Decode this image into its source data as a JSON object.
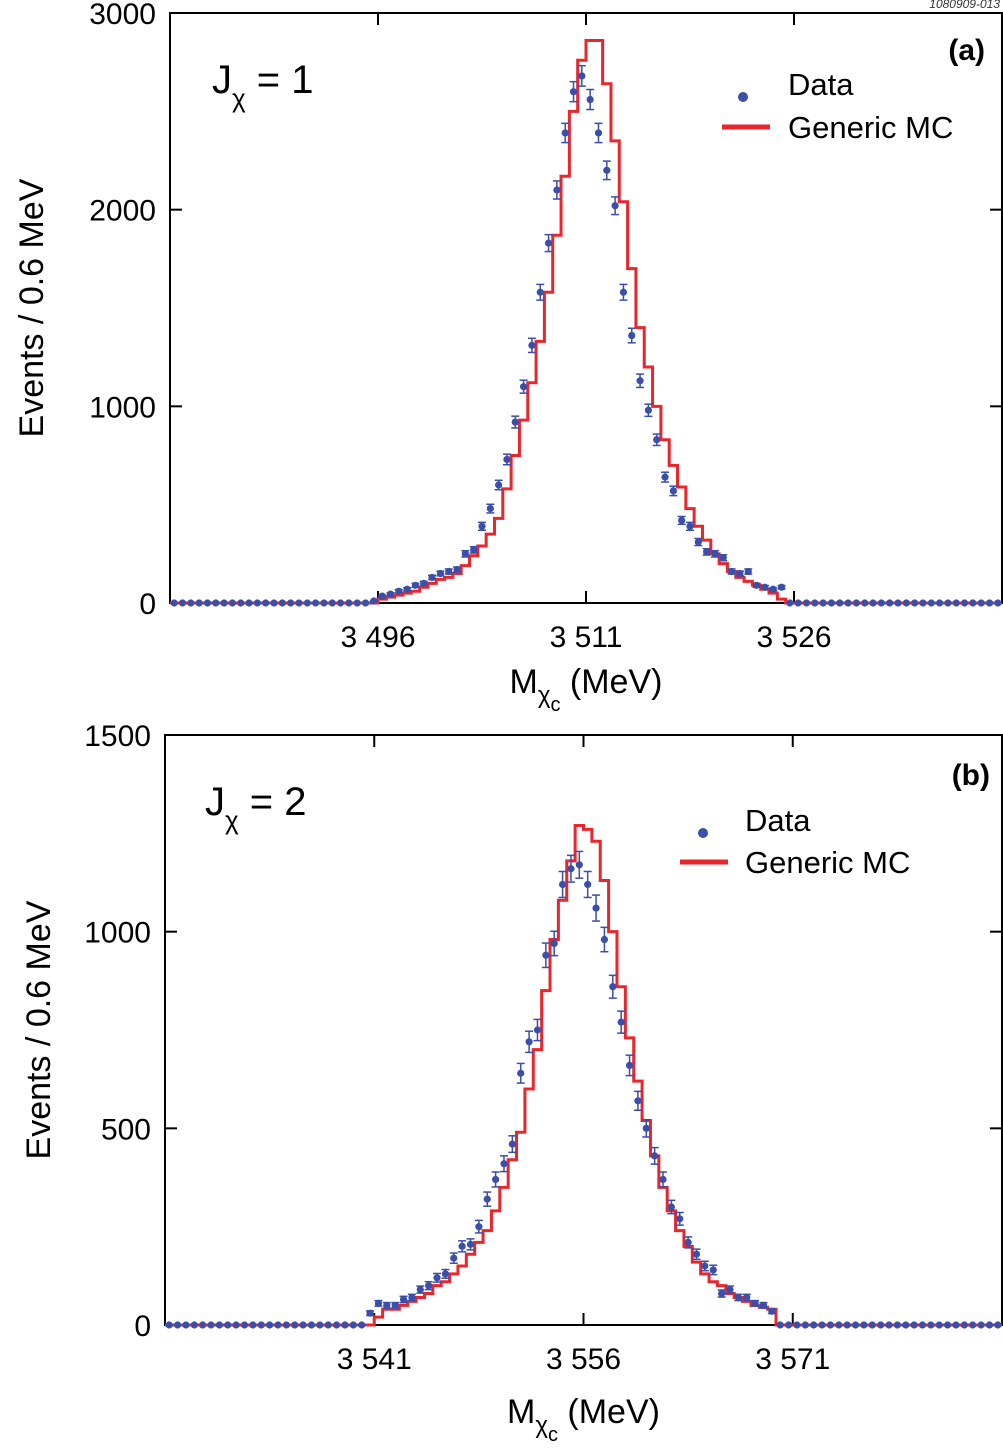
{
  "corner_label": "1080909-013",
  "legend_marker_color": "#3a4faa",
  "legend_line_color": "#e8262b",
  "chart_data": [
    {
      "type": "line",
      "panel_tag": "(a)",
      "annotation": {
        "main": "J",
        "sub": "χ",
        "rest": " = 1"
      },
      "ylabel": "Events / 0.6 MeV",
      "xlabel": {
        "main": "M",
        "sub": "χ",
        "subsub": "c",
        "rest": " (MeV)"
      },
      "xticks": [
        {
          "value": 3496,
          "label": "3 496"
        },
        {
          "value": 3511,
          "label": "3 511"
        },
        {
          "value": 3526,
          "label": "3 526"
        }
      ],
      "yticks": [
        {
          "value": 0,
          "label": "0"
        },
        {
          "value": 1000,
          "label": "1000"
        },
        {
          "value": 2000,
          "label": "2000"
        },
        {
          "value": 3000,
          "label": "3000"
        }
      ],
      "xlim": [
        3481,
        3541
      ],
      "ylim": [
        0,
        3000
      ],
      "legend": [
        {
          "name": "Data",
          "kind": "marker"
        },
        {
          "name": "Generic MC",
          "kind": "line"
        }
      ],
      "series": [
        {
          "name": "Data",
          "kind": "points_errorbars",
          "x": [
            3481.3,
            3481.9,
            3482.5,
            3483.1,
            3483.7,
            3484.3,
            3484.9,
            3485.5,
            3486.1,
            3486.7,
            3487.3,
            3487.9,
            3488.5,
            3489.1,
            3489.7,
            3490.3,
            3490.9,
            3491.5,
            3492.1,
            3492.7,
            3493.3,
            3493.9,
            3494.5,
            3495.1,
            3495.7,
            3496.3,
            3496.9,
            3497.5,
            3498.1,
            3498.7,
            3499.3,
            3499.9,
            3500.5,
            3501.1,
            3501.7,
            3502.3,
            3502.9,
            3503.5,
            3504.1,
            3504.7,
            3505.3,
            3505.9,
            3506.5,
            3507.1,
            3507.7,
            3508.3,
            3508.9,
            3509.5,
            3510.1,
            3510.7,
            3511.3,
            3511.9,
            3512.5,
            3513.1,
            3513.7,
            3514.3,
            3514.9,
            3515.5,
            3516.1,
            3516.7,
            3517.3,
            3517.9,
            3518.5,
            3519.1,
            3519.7,
            3520.3,
            3520.9,
            3521.5,
            3522.1,
            3522.7,
            3523.3,
            3523.9,
            3524.5,
            3525.1,
            3525.7,
            3526.3,
            3526.9,
            3527.5,
            3528.1,
            3528.7,
            3529.3,
            3529.9,
            3530.5,
            3531.1,
            3531.7,
            3532.3,
            3532.9,
            3533.5,
            3534.1,
            3534.7,
            3535.3,
            3535.9,
            3536.5,
            3537.1,
            3537.7,
            3538.3,
            3538.9,
            3539.5,
            3540.1,
            3540.7
          ],
          "y": [
            0,
            0,
            0,
            0,
            0,
            0,
            0,
            0,
            0,
            0,
            0,
            0,
            0,
            0,
            0,
            0,
            0,
            0,
            0,
            0,
            0,
            0,
            0,
            0,
            10,
            35,
            45,
            60,
            70,
            90,
            100,
            130,
            150,
            160,
            170,
            250,
            270,
            390,
            480,
            600,
            730,
            920,
            1100,
            1310,
            1580,
            1830,
            2100,
            2390,
            2600,
            2680,
            2560,
            2390,
            2200,
            2020,
            1580,
            1360,
            1130,
            980,
            830,
            640,
            570,
            420,
            390,
            310,
            260,
            250,
            230,
            160,
            150,
            160,
            90,
            80,
            70,
            80,
            0,
            0,
            0,
            0,
            0,
            0,
            0,
            0,
            0,
            0,
            0,
            0,
            0,
            0,
            0,
            0,
            0,
            0,
            0,
            0,
            0,
            0,
            0,
            0,
            0,
            0
          ],
          "yerr": [
            0,
            0,
            0,
            0,
            0,
            0,
            0,
            0,
            0,
            0,
            0,
            0,
            0,
            0,
            0,
            0,
            0,
            0,
            0,
            0,
            0,
            0,
            0,
            0,
            3,
            6,
            7,
            8,
            8,
            10,
            10,
            11,
            12,
            13,
            13,
            16,
            16,
            20,
            22,
            24,
            27,
            30,
            33,
            36,
            40,
            43,
            46,
            49,
            51,
            52,
            51,
            49,
            47,
            45,
            40,
            37,
            34,
            31,
            29,
            25,
            24,
            20,
            20,
            18,
            16,
            16,
            15,
            13,
            12,
            13,
            10,
            9,
            8,
            9,
            0,
            0,
            0,
            0,
            0,
            0,
            0,
            0,
            0,
            0,
            0,
            0,
            0,
            0,
            0,
            0,
            0,
            0,
            0,
            0,
            0,
            0,
            0,
            0,
            0,
            0
          ]
        },
        {
          "name": "Generic MC",
          "kind": "step",
          "edges_start": 3481.0,
          "bin_width": 0.6,
          "y": [
            0,
            0,
            0,
            0,
            0,
            0,
            0,
            0,
            0,
            0,
            0,
            0,
            0,
            0,
            0,
            0,
            0,
            0,
            0,
            0,
            0,
            0,
            0,
            0,
            0,
            20,
            30,
            40,
            50,
            60,
            80,
            100,
            120,
            130,
            150,
            190,
            240,
            290,
            350,
            430,
            580,
            750,
            930,
            1120,
            1330,
            1580,
            1870,
            2170,
            2500,
            2760,
            2860,
            2860,
            2640,
            2350,
            2040,
            1700,
            1400,
            1200,
            1000,
            830,
            700,
            590,
            480,
            390,
            320,
            250,
            200,
            160,
            130,
            110,
            90,
            70,
            50,
            20,
            0,
            0,
            0,
            0,
            0,
            0,
            0,
            0,
            0,
            0,
            0,
            0,
            0,
            0,
            0,
            0,
            0,
            0,
            0,
            0,
            0,
            0,
            0,
            0,
            0,
            0
          ]
        }
      ]
    },
    {
      "type": "line",
      "panel_tag": "(b)",
      "annotation": {
        "main": "J",
        "sub": "χ",
        "rest": " = 2"
      },
      "ylabel": "Events / 0.6 MeV",
      "xlabel": {
        "main": "M",
        "sub": "χ",
        "subsub": "c",
        "rest": " (MeV)"
      },
      "xticks": [
        {
          "value": 3541,
          "label": "3 541"
        },
        {
          "value": 3556,
          "label": "3 556"
        },
        {
          "value": 3571,
          "label": "3 571"
        }
      ],
      "yticks": [
        {
          "value": 0,
          "label": "0"
        },
        {
          "value": 500,
          "label": "500"
        },
        {
          "value": 1000,
          "label": "1000"
        },
        {
          "value": 1500,
          "label": "1500"
        }
      ],
      "xlim": [
        3526,
        3586
      ],
      "ylim": [
        0,
        1500
      ],
      "legend": [
        {
          "name": "Data",
          "kind": "marker"
        },
        {
          "name": "Generic MC",
          "kind": "line"
        }
      ],
      "series": [
        {
          "name": "Data",
          "kind": "points_errorbars",
          "x": [
            3526.3,
            3526.9,
            3527.5,
            3528.1,
            3528.7,
            3529.3,
            3529.9,
            3530.5,
            3531.1,
            3531.7,
            3532.3,
            3532.9,
            3533.5,
            3534.1,
            3534.7,
            3535.3,
            3535.9,
            3536.5,
            3537.1,
            3537.7,
            3538.3,
            3538.9,
            3539.5,
            3540.1,
            3540.7,
            3541.3,
            3541.9,
            3542.5,
            3543.1,
            3543.7,
            3544.3,
            3544.9,
            3545.5,
            3546.1,
            3546.7,
            3547.3,
            3547.9,
            3548.5,
            3549.1,
            3549.7,
            3550.3,
            3550.9,
            3551.5,
            3552.1,
            3552.7,
            3553.3,
            3553.9,
            3554.5,
            3555.1,
            3555.7,
            3556.3,
            3556.9,
            3557.5,
            3558.1,
            3558.7,
            3559.3,
            3559.9,
            3560.5,
            3561.1,
            3561.7,
            3562.3,
            3562.9,
            3563.5,
            3564.1,
            3564.7,
            3565.3,
            3565.9,
            3566.5,
            3567.1,
            3567.7,
            3568.3,
            3568.9,
            3569.5,
            3570.1,
            3570.7,
            3571.3,
            3571.9,
            3572.5,
            3573.1,
            3573.7,
            3574.3,
            3574.9,
            3575.5,
            3576.1,
            3576.7,
            3577.3,
            3577.9,
            3578.5,
            3579.1,
            3579.7,
            3580.3,
            3580.9,
            3581.5,
            3582.1,
            3582.7,
            3583.3,
            3583.9,
            3584.5,
            3585.1,
            3585.7
          ],
          "y": [
            0,
            0,
            0,
            0,
            0,
            0,
            0,
            0,
            0,
            0,
            0,
            0,
            0,
            0,
            0,
            0,
            0,
            0,
            0,
            0,
            0,
            0,
            0,
            0,
            30,
            55,
            50,
            50,
            65,
            70,
            90,
            100,
            120,
            130,
            170,
            200,
            205,
            250,
            320,
            370,
            410,
            460,
            640,
            720,
            750,
            940,
            970,
            1120,
            1160,
            1170,
            1120,
            1060,
            980,
            860,
            770,
            660,
            570,
            500,
            430,
            370,
            300,
            270,
            210,
            180,
            150,
            140,
            80,
            90,
            70,
            70,
            55,
            50,
            35,
            0,
            0,
            0,
            0,
            0,
            0,
            0,
            0,
            0,
            0,
            0,
            0,
            0,
            0,
            0,
            0,
            0,
            0,
            0,
            0,
            0,
            0,
            0,
            0,
            0,
            0,
            0
          ],
          "yerr": [
            0,
            0,
            0,
            0,
            0,
            0,
            0,
            0,
            0,
            0,
            0,
            0,
            0,
            0,
            0,
            0,
            0,
            0,
            0,
            0,
            0,
            0,
            0,
            0,
            6,
            7,
            7,
            7,
            8,
            8,
            9,
            10,
            11,
            11,
            13,
            14,
            14,
            16,
            18,
            19,
            20,
            21,
            25,
            27,
            27,
            31,
            31,
            33,
            34,
            34,
            33,
            33,
            31,
            29,
            28,
            26,
            24,
            22,
            21,
            19,
            17,
            16,
            14,
            13,
            12,
            12,
            9,
            9,
            8,
            8,
            7,
            7,
            6,
            0,
            0,
            0,
            0,
            0,
            0,
            0,
            0,
            0,
            0,
            0,
            0,
            0,
            0,
            0,
            0,
            0,
            0,
            0,
            0,
            0,
            0,
            0,
            0,
            0,
            0,
            0
          ]
        },
        {
          "name": "Generic MC",
          "kind": "step",
          "edges_start": 3526.0,
          "bin_width": 0.6,
          "y": [
            0,
            0,
            0,
            0,
            0,
            0,
            0,
            0,
            0,
            0,
            0,
            0,
            0,
            0,
            0,
            0,
            0,
            0,
            0,
            0,
            0,
            0,
            0,
            0,
            0,
            20,
            40,
            40,
            50,
            60,
            70,
            80,
            100,
            110,
            130,
            150,
            180,
            210,
            240,
            290,
            350,
            420,
            490,
            600,
            700,
            850,
            980,
            1080,
            1180,
            1270,
            1260,
            1230,
            1130,
            1000,
            860,
            730,
            620,
            520,
            430,
            350,
            290,
            240,
            200,
            160,
            130,
            110,
            100,
            80,
            70,
            60,
            50,
            45,
            40,
            0,
            0,
            0,
            0,
            0,
            0,
            0,
            0,
            0,
            0,
            0,
            0,
            0,
            0,
            0,
            0,
            0,
            0,
            0,
            0,
            0,
            0,
            0,
            0,
            0,
            0,
            0
          ]
        }
      ]
    }
  ]
}
